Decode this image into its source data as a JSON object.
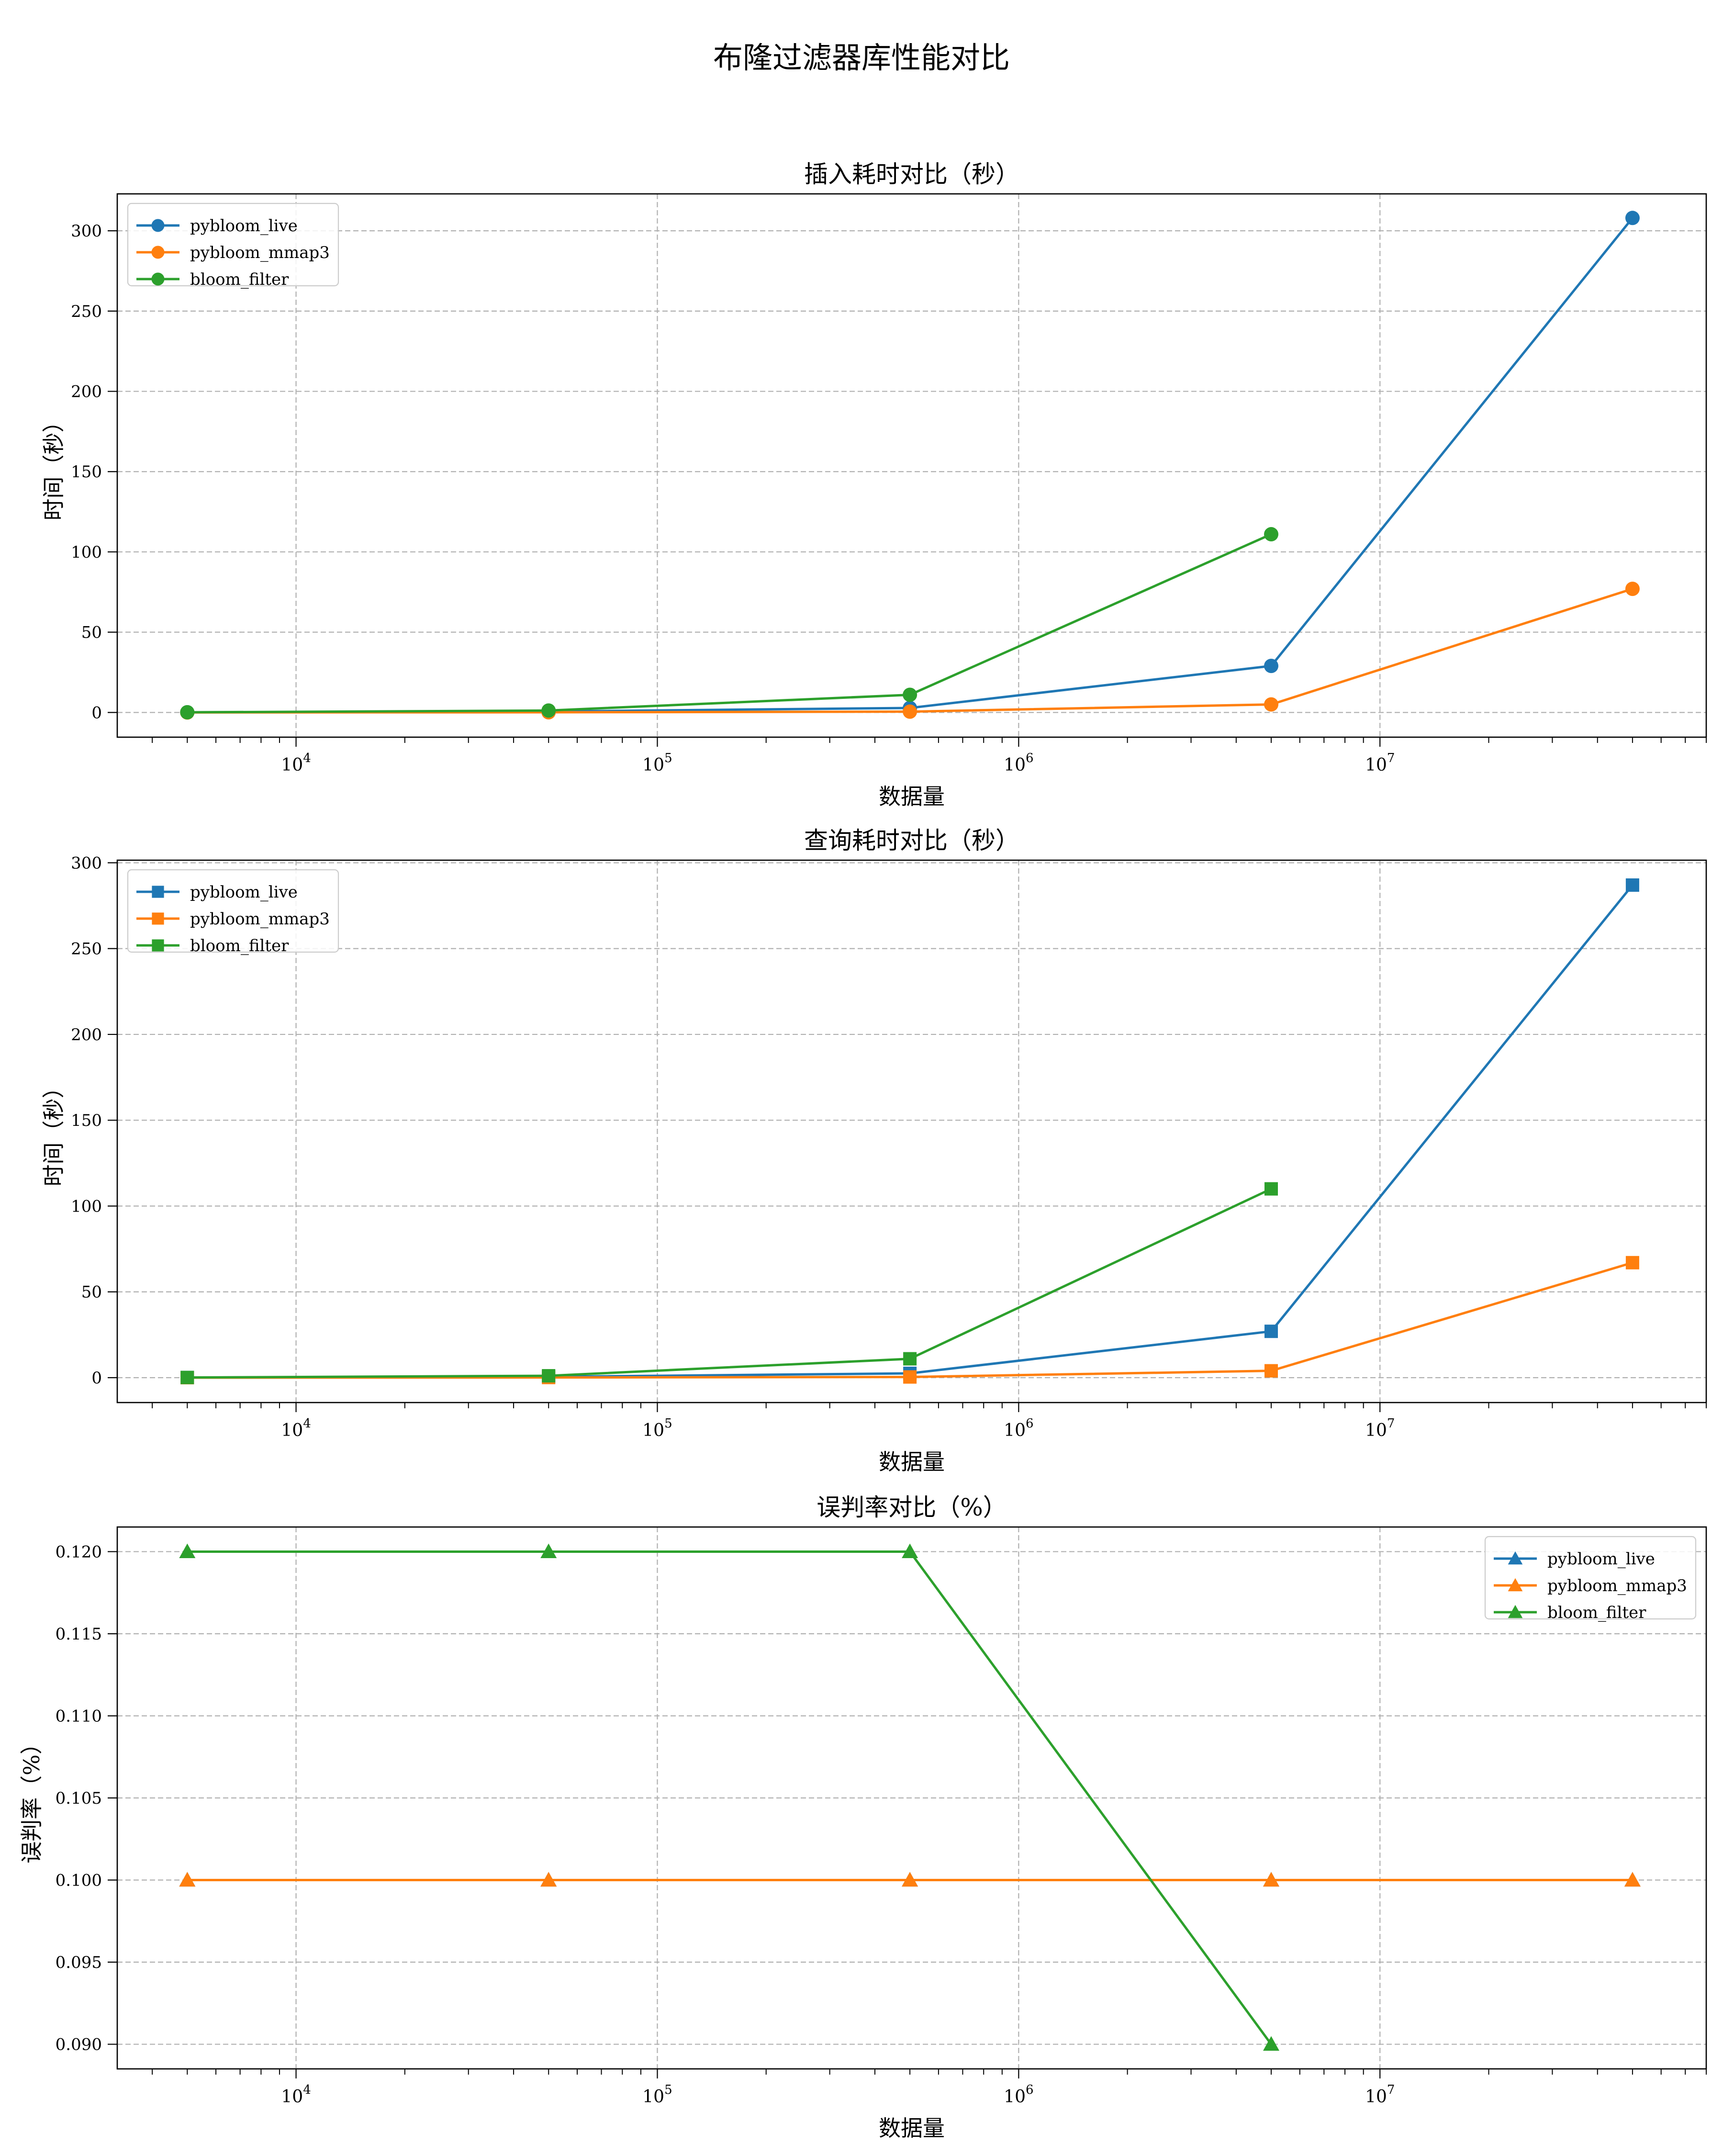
{
  "figure": {
    "suptitle": "布隆过滤器库性能对比"
  },
  "colors": {
    "pybloom_live": "#1f77b4",
    "pybloom_mmap3": "#ff7f0e",
    "bloom_filter": "#2ca02c",
    "grid": "#b0b0b0"
  },
  "chart_data": [
    {
      "type": "line",
      "title": "插入耗时对比（秒）",
      "xlabel": "数据量",
      "ylabel": "时间（秒）",
      "xscale": "log",
      "xlim": [
        3200,
        80000000
      ],
      "ylim": [
        -15.4,
        323
      ],
      "xticks": [
        10000,
        100000,
        1000000,
        10000000
      ],
      "xtick_labels": [
        [
          "10",
          "4"
        ],
        [
          "10",
          "5"
        ],
        [
          "10",
          "6"
        ],
        [
          "10",
          "7"
        ]
      ],
      "yticks": [
        0,
        50,
        100,
        150,
        200,
        250,
        300
      ],
      "ytick_labels": [
        "0",
        "50",
        "100",
        "150",
        "200",
        "250",
        "300"
      ],
      "marker": "circle",
      "grid": true,
      "legend": {
        "position": "top-left"
      },
      "series": [
        {
          "name": "pybloom_live",
          "color": "#1f77b4",
          "x": [
            5000,
            50000,
            500000,
            5000000,
            50000000
          ],
          "y": [
            0.1,
            0.6,
            2.8,
            29,
            308
          ]
        },
        {
          "name": "pybloom_mmap3",
          "color": "#ff7f0e",
          "x": [
            5000,
            50000,
            500000,
            5000000,
            50000000
          ],
          "y": [
            0,
            0.1,
            0.5,
            5,
            77
          ]
        },
        {
          "name": "bloom_filter",
          "color": "#2ca02c",
          "x": [
            5000,
            50000,
            500000,
            5000000
          ],
          "y": [
            0.1,
            1.2,
            11,
            111
          ]
        }
      ]
    },
    {
      "type": "line",
      "title": "查询耗时对比（秒）",
      "xlabel": "数据量",
      "ylabel": "时间（秒）",
      "xscale": "log",
      "xlim": [
        3200,
        80000000
      ],
      "ylim": [
        -14.5,
        301.5
      ],
      "xticks": [
        10000,
        100000,
        1000000,
        10000000
      ],
      "xtick_labels": [
        [
          "10",
          "4"
        ],
        [
          "10",
          "5"
        ],
        [
          "10",
          "6"
        ],
        [
          "10",
          "7"
        ]
      ],
      "yticks": [
        0,
        50,
        100,
        150,
        200,
        250,
        300
      ],
      "ytick_labels": [
        "0",
        "50",
        "100",
        "150",
        "200",
        "250",
        "300"
      ],
      "marker": "square",
      "grid": true,
      "legend": {
        "position": "top-left"
      },
      "series": [
        {
          "name": "pybloom_live",
          "color": "#1f77b4",
          "x": [
            5000,
            50000,
            500000,
            5000000,
            50000000
          ],
          "y": [
            0.1,
            0.5,
            2.5,
            27,
            287
          ]
        },
        {
          "name": "pybloom_mmap3",
          "color": "#ff7f0e",
          "x": [
            5000,
            50000,
            500000,
            5000000,
            50000000
          ],
          "y": [
            0,
            0.1,
            0.4,
            4,
            67
          ]
        },
        {
          "name": "bloom_filter",
          "color": "#2ca02c",
          "x": [
            5000,
            50000,
            500000,
            5000000
          ],
          "y": [
            0.1,
            1.1,
            11,
            110
          ]
        }
      ]
    },
    {
      "type": "line",
      "title": "误判率对比（%）",
      "xlabel": "数据量",
      "ylabel": "误判率（%）",
      "xscale": "log",
      "xlim": [
        3200,
        80000000
      ],
      "ylim": [
        0.0885,
        0.1215
      ],
      "xticks": [
        10000,
        100000,
        1000000,
        10000000
      ],
      "xtick_labels": [
        [
          "10",
          "4"
        ],
        [
          "10",
          "5"
        ],
        [
          "10",
          "6"
        ],
        [
          "10",
          "7"
        ]
      ],
      "yticks": [
        0.09,
        0.095,
        0.1,
        0.105,
        0.11,
        0.115,
        0.12
      ],
      "ytick_labels": [
        "0.090",
        "0.095",
        "0.100",
        "0.105",
        "0.110",
        "0.115",
        "0.120"
      ],
      "marker": "triangle",
      "grid": true,
      "legend": {
        "position": "top-right"
      },
      "series": [
        {
          "name": "pybloom_live",
          "color": "#1f77b4",
          "x": [
            5000,
            50000,
            500000,
            5000000,
            50000000
          ],
          "y": [
            0.1,
            0.1,
            0.1,
            0.1,
            0.1
          ]
        },
        {
          "name": "pybloom_mmap3",
          "color": "#ff7f0e",
          "x": [
            5000,
            50000,
            500000,
            5000000,
            50000000
          ],
          "y": [
            0.1,
            0.1,
            0.1,
            0.1,
            0.1
          ]
        },
        {
          "name": "bloom_filter",
          "color": "#2ca02c",
          "x": [
            5000,
            50000,
            500000,
            5000000
          ],
          "y": [
            0.12,
            0.12,
            0.12,
            0.09
          ]
        }
      ]
    }
  ]
}
